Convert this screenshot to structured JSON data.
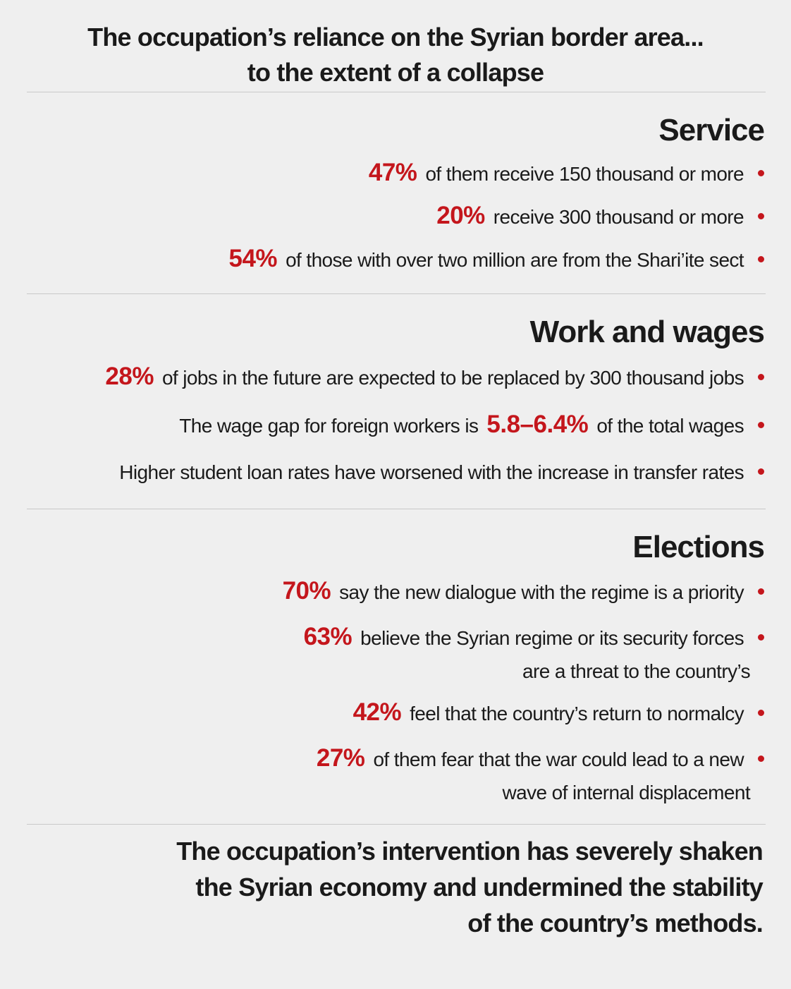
{
  "header": {
    "title_lines": [
      "The occupation’s reliance on the Syrian border area...",
      "to the extent of a collapse"
    ]
  },
  "sections": [
    {
      "heading": "Service",
      "items": [
        {
          "parts": [
            {
              "text": "47%",
              "highlight": true
            },
            {
              "text": "of them receive 150 thousand or more"
            }
          ]
        },
        {
          "parts": [
            {
              "text": "20%",
              "highlight": true
            },
            {
              "text": "receive 300 thousand or more"
            }
          ]
        },
        {
          "parts": [
            {
              "text": "54%",
              "highlight": true
            },
            {
              "text": "of those with over two million are from the Shari’ite sect"
            }
          ]
        }
      ]
    },
    {
      "heading": "Work and wages",
      "items": [
        {
          "parts": [
            {
              "text": "28%",
              "highlight": true
            },
            {
              "text": "of jobs in the future are expected to be replaced by 300 thousand jobs"
            }
          ]
        },
        {
          "parts": [
            {
              "text": "The wage gap for foreign workers is"
            },
            {
              "text": "5.8–6.4%",
              "highlight": true
            },
            {
              "text": "of the total wages"
            }
          ]
        },
        {
          "parts": [
            {
              "text": "Higher student loan rates have worsened with the increase in transfer rates"
            }
          ]
        }
      ]
    },
    {
      "heading": "Elections",
      "items": [
        {
          "parts": [
            {
              "text": "70%",
              "highlight": true
            },
            {
              "text": "say the new dialogue with the regime is a priority"
            }
          ]
        },
        {
          "parts": [
            {
              "text": "63%",
              "highlight": true
            },
            {
              "text": "believe the Syrian regime or its security forces"
            }
          ],
          "continuation": "are a threat to the country’s"
        },
        {
          "parts": [
            {
              "text": "42%",
              "highlight": true
            },
            {
              "text": "feel that the country’s return to normalcy"
            }
          ]
        },
        {
          "parts": [
            {
              "text": "27%",
              "highlight": true
            },
            {
              "text": "of them fear that the war could lead to a new"
            }
          ],
          "continuation": "wave of internal displacement"
        }
      ]
    }
  ],
  "footer": {
    "lines": [
      "The occupation’s intervention has severely shaken",
      "the Syrian economy and undermined the stability",
      "of the country’s methods."
    ]
  }
}
